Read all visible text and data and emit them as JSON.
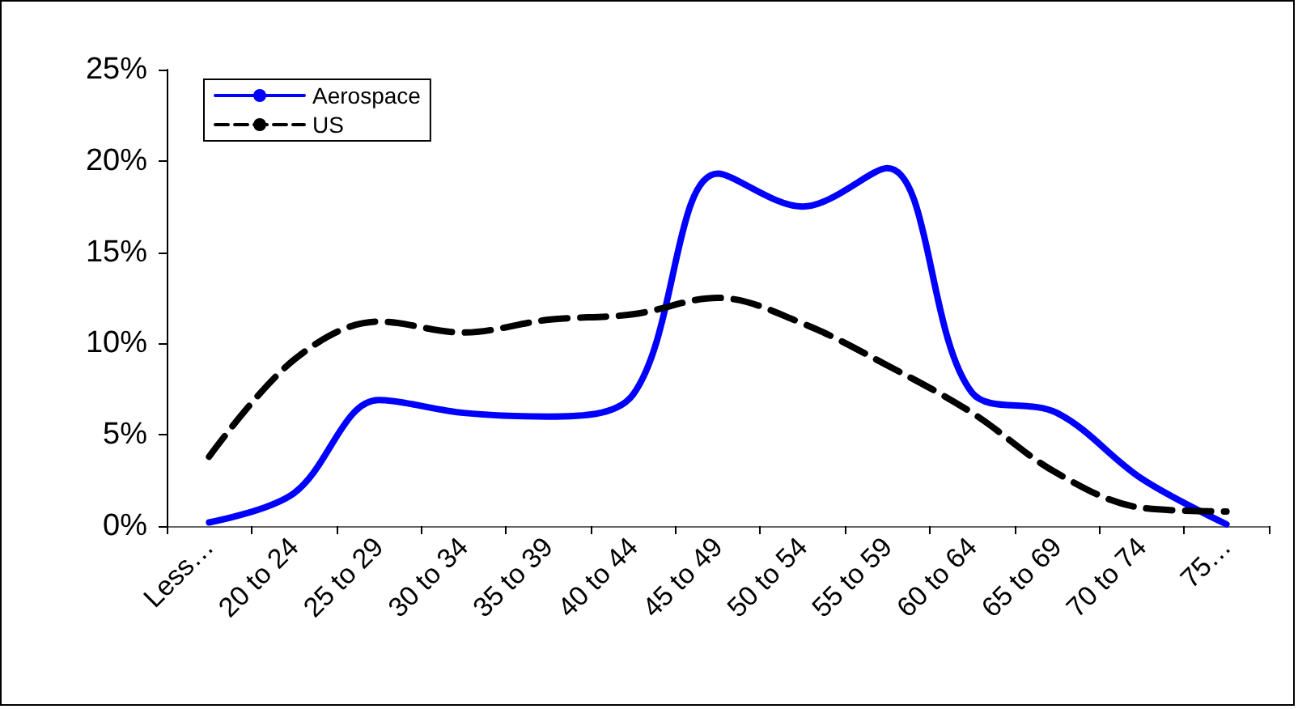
{
  "chart_data": {
    "type": "line",
    "categories": [
      "Less…",
      "20 to 24",
      "25 to 29",
      "30 to 34",
      "35 to 39",
      "40 to 44",
      "45 to 49",
      "50 to 54",
      "55 to 59",
      "60 to 64",
      "65 to 69",
      "70 to 74",
      "75…"
    ],
    "series": [
      {
        "name": "Aerospace",
        "color": "#0000ff",
        "line_style": "solid",
        "values": [
          0.2,
          1.8,
          6.9,
          6.2,
          6.0,
          7.2,
          19.3,
          17.5,
          19.6,
          7.3,
          6.2,
          2.6,
          0.1
        ]
      },
      {
        "name": "US",
        "color": "#000000",
        "line_style": "dashed",
        "values": [
          3.8,
          9.1,
          11.2,
          10.6,
          11.3,
          11.6,
          12.5,
          11.1,
          8.8,
          6.2,
          2.9,
          1.0,
          0.8
        ]
      }
    ],
    "ylim": [
      0,
      25
    ],
    "yticks": [
      {
        "value": 0,
        "label": "0%"
      },
      {
        "value": 5,
        "label": "5%"
      },
      {
        "value": 10,
        "label": "10%"
      },
      {
        "value": 15,
        "label": "15%"
      },
      {
        "value": 20,
        "label": "20%"
      },
      {
        "value": 25,
        "label": "25%"
      }
    ],
    "grid": false,
    "legend": "top left",
    "marker": "none"
  }
}
